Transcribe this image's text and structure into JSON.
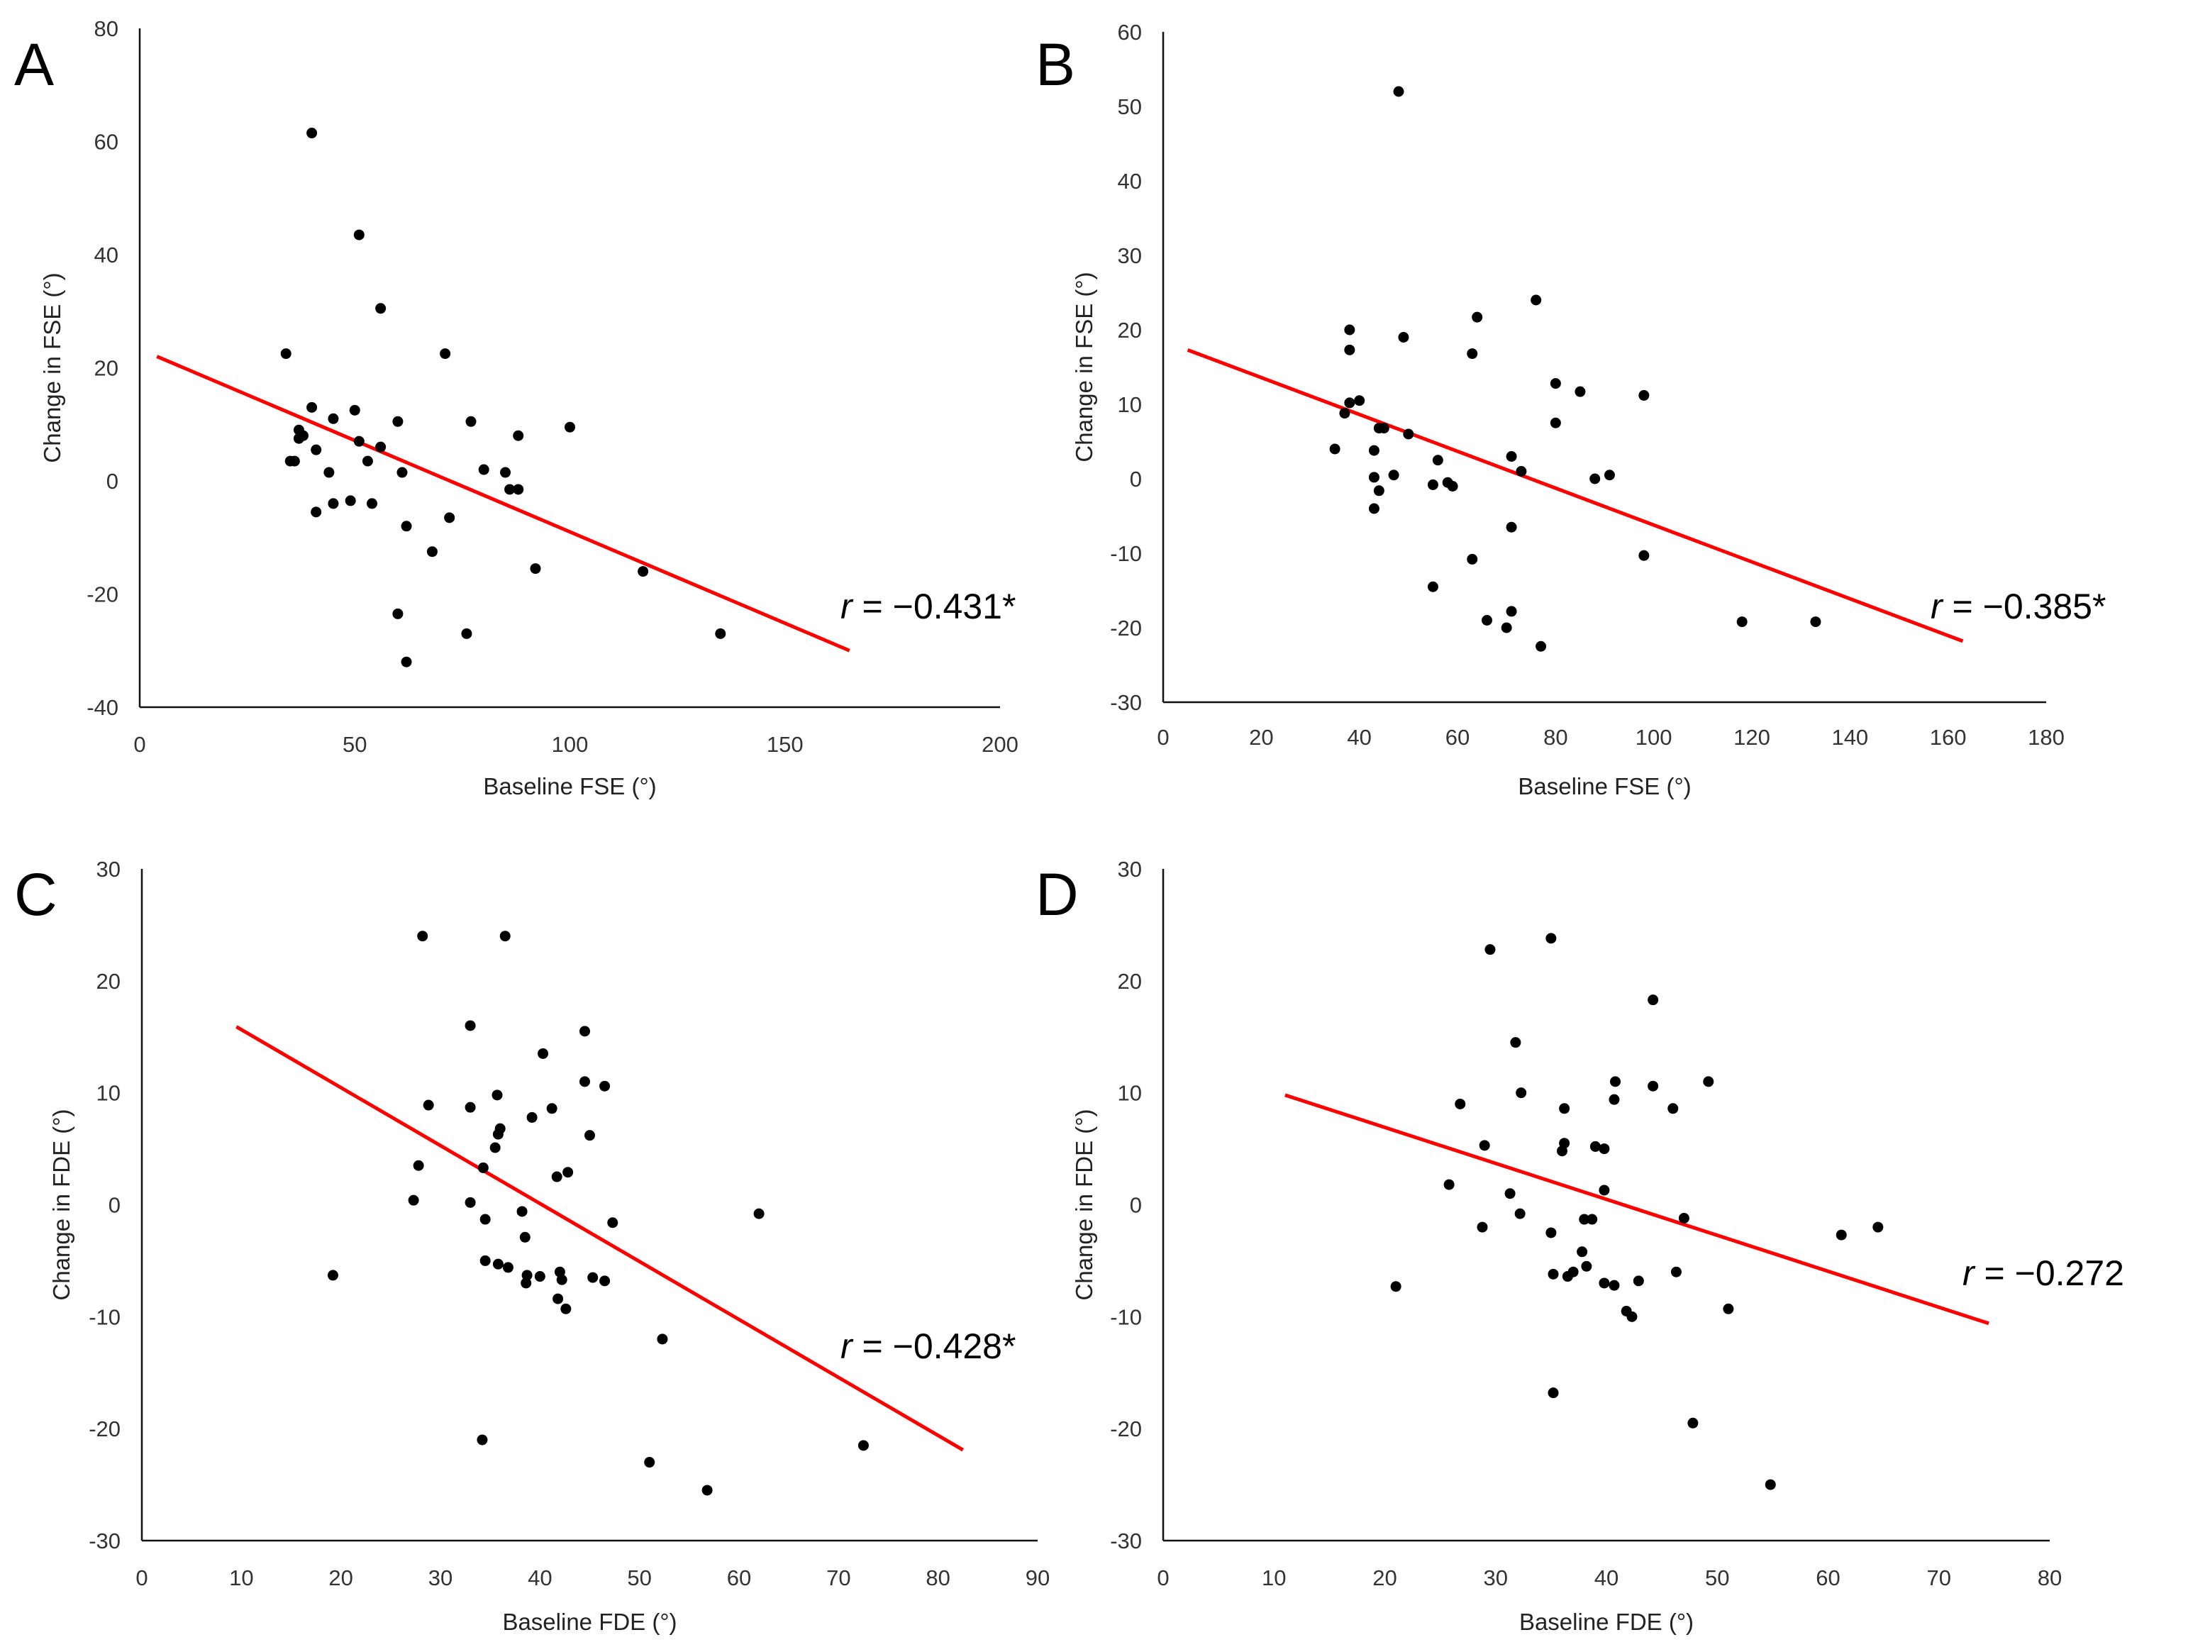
{
  "chart_data": [
    {
      "type": "scatter",
      "panel": "A",
      "xlabel": "Baseline FSE (°)",
      "ylabel": "Change in FSE (°)",
      "xlim": [
        0,
        200
      ],
      "ylim": [
        -40,
        80
      ],
      "xticks": [
        0,
        50,
        100,
        150,
        200
      ],
      "yticks": [
        -40,
        -20,
        0,
        20,
        40,
        60,
        80
      ],
      "xtick_labels": [
        "0",
        "50",
        "100",
        "150",
        "200"
      ],
      "ytick_labels": [
        "-40",
        "-20",
        "0",
        "20",
        "40",
        "60",
        "80"
      ],
      "annotation": {
        "var": "r",
        "text": " = −0.431*"
      },
      "trendline": {
        "x": [
          4,
          165
        ],
        "y": [
          22,
          -30
        ]
      },
      "points": [
        [
          40,
          61.5
        ],
        [
          51,
          43.5
        ],
        [
          56,
          30.5
        ],
        [
          34,
          22.5
        ],
        [
          71,
          22.5
        ],
        [
          40,
          13
        ],
        [
          50,
          12.5
        ],
        [
          45,
          11
        ],
        [
          60,
          10.5
        ],
        [
          77,
          10.5
        ],
        [
          100,
          9.5
        ],
        [
          37,
          9
        ],
        [
          38,
          8
        ],
        [
          37,
          7.5
        ],
        [
          88,
          8
        ],
        [
          51,
          7
        ],
        [
          56,
          6
        ],
        [
          41,
          5.5
        ],
        [
          35,
          3.5
        ],
        [
          36,
          3.5
        ],
        [
          53,
          3.5
        ],
        [
          44,
          1.5
        ],
        [
          61,
          1.5
        ],
        [
          80,
          2
        ],
        [
          85,
          1.5
        ],
        [
          86,
          -1.5
        ],
        [
          88,
          -1.5
        ],
        [
          49,
          -3.5
        ],
        [
          45,
          -4
        ],
        [
          54,
          -4
        ],
        [
          41,
          -5.5
        ],
        [
          72,
          -6.5
        ],
        [
          62,
          -8
        ],
        [
          68,
          -12.5
        ],
        [
          92,
          -15.5
        ],
        [
          117,
          -16
        ],
        [
          60,
          -23.5
        ],
        [
          76,
          -27
        ],
        [
          135,
          -27
        ],
        [
          62,
          -32
        ]
      ]
    },
    {
      "type": "scatter",
      "panel": "B",
      "xlabel": "Baseline FSE (°)",
      "ylabel": "Change in FSE (°)",
      "xlim": [
        0,
        180
      ],
      "ylim": [
        -30,
        60
      ],
      "xticks": [
        0,
        20,
        40,
        60,
        80,
        100,
        120,
        140,
        160,
        180
      ],
      "yticks": [
        -30,
        -20,
        -10,
        0,
        10,
        20,
        30,
        40,
        50,
        60
      ],
      "xtick_labels": [
        "0",
        "20",
        "40",
        "60",
        "80",
        "100",
        "120",
        "140",
        "160",
        "180"
      ],
      "ytick_labels": [
        "-30",
        "-20",
        "-10",
        "0",
        "10",
        "20",
        "30",
        "40",
        "50",
        "60"
      ],
      "annotation": {
        "var": "r",
        "text": " = −0.385*"
      },
      "trendline": {
        "x": [
          5,
          163
        ],
        "y": [
          17.3,
          -21.8
        ]
      },
      "points": [
        [
          48,
          52
        ],
        [
          76,
          24
        ],
        [
          64,
          21.7
        ],
        [
          38,
          20
        ],
        [
          49,
          19
        ],
        [
          38,
          17.3
        ],
        [
          63,
          16.8
        ],
        [
          80,
          12.8
        ],
        [
          85,
          11.7
        ],
        [
          98,
          11.2
        ],
        [
          40,
          10.5
        ],
        [
          38,
          10.2
        ],
        [
          37,
          8.8
        ],
        [
          80,
          7.5
        ],
        [
          44,
          6.8
        ],
        [
          45,
          6.8
        ],
        [
          50,
          6
        ],
        [
          35,
          4
        ],
        [
          43,
          3.8
        ],
        [
          71,
          3
        ],
        [
          56,
          2.5
        ],
        [
          73,
          1
        ],
        [
          43,
          0.2
        ],
        [
          47,
          0.5
        ],
        [
          88,
          0
        ],
        [
          91,
          0.5
        ],
        [
          55,
          -0.8
        ],
        [
          58,
          -0.5
        ],
        [
          59,
          -1
        ],
        [
          44,
          -1.6
        ],
        [
          43,
          -4
        ],
        [
          71,
          -6.5
        ],
        [
          98,
          -10.3
        ],
        [
          63,
          -10.8
        ],
        [
          55,
          -14.5
        ],
        [
          71,
          -17.8
        ],
        [
          66,
          -19
        ],
        [
          70,
          -20
        ],
        [
          118,
          -19.2
        ],
        [
          133,
          -19.2
        ],
        [
          77,
          -22.5
        ]
      ]
    },
    {
      "type": "scatter",
      "panel": "C",
      "xlabel": "Baseline FDE (°)",
      "ylabel": "Change in FDE (°)",
      "xlim": [
        0,
        90
      ],
      "ylim": [
        -30,
        30
      ],
      "xticks": [
        0,
        10,
        20,
        30,
        40,
        50,
        60,
        70,
        80,
        90
      ],
      "yticks": [
        -30,
        -20,
        -10,
        0,
        10,
        20,
        30
      ],
      "xtick_labels": [
        "0",
        "10",
        "20",
        "30",
        "40",
        "50",
        "60",
        "70",
        "80",
        "90"
      ],
      "ytick_labels": [
        "-30",
        "-20",
        "-10",
        "0",
        "10",
        "20",
        "30"
      ],
      "annotation": {
        "var": "r",
        "text": " = −0.428*"
      },
      "trendline": {
        "x": [
          9.5,
          82.5
        ],
        "y": [
          15.9,
          -21.9
        ]
      },
      "points": [
        [
          28.2,
          24
        ],
        [
          36.5,
          24
        ],
        [
          33,
          16
        ],
        [
          44.5,
          15.5
        ],
        [
          40.3,
          13.5
        ],
        [
          44.5,
          11
        ],
        [
          46.5,
          10.6
        ],
        [
          35.7,
          9.8
        ],
        [
          28.8,
          8.9
        ],
        [
          33,
          8.7
        ],
        [
          41.2,
          8.6
        ],
        [
          39.2,
          7.8
        ],
        [
          36,
          6.8
        ],
        [
          35.8,
          6.3
        ],
        [
          45,
          6.2
        ],
        [
          35.5,
          5.1
        ],
        [
          27.8,
          3.5
        ],
        [
          34.3,
          3.3
        ],
        [
          42.8,
          2.9
        ],
        [
          41.7,
          2.5
        ],
        [
          27.3,
          0.4
        ],
        [
          33,
          0.2
        ],
        [
          38.2,
          -0.6
        ],
        [
          62,
          -0.8
        ],
        [
          34.5,
          -1.3
        ],
        [
          47.3,
          -1.6
        ],
        [
          38.5,
          -2.9
        ],
        [
          34.5,
          -5
        ],
        [
          35.8,
          -5.3
        ],
        [
          36.8,
          -5.6
        ],
        [
          42,
          -6
        ],
        [
          38.7,
          -6.3
        ],
        [
          40,
          -6.4
        ],
        [
          45.3,
          -6.5
        ],
        [
          42.2,
          -6.7
        ],
        [
          46.5,
          -6.8
        ],
        [
          19.2,
          -6.3
        ],
        [
          38.6,
          -7
        ],
        [
          41.8,
          -8.4
        ],
        [
          42.6,
          -9.3
        ],
        [
          52.3,
          -12
        ],
        [
          34.2,
          -21
        ],
        [
          72.5,
          -21.5
        ],
        [
          51,
          -23
        ],
        [
          56.8,
          -25.5
        ]
      ]
    },
    {
      "type": "scatter",
      "panel": "D",
      "xlabel": "Baseline FDE (°)",
      "ylabel": "Change in FDE (°)",
      "xlim": [
        0,
        80
      ],
      "ylim": [
        -30,
        30
      ],
      "xticks": [
        0,
        10,
        20,
        30,
        40,
        50,
        60,
        70,
        80
      ],
      "yticks": [
        -30,
        -20,
        -10,
        0,
        10,
        20,
        30
      ],
      "xtick_labels": [
        "0",
        "10",
        "20",
        "30",
        "40",
        "50",
        "60",
        "70",
        "80"
      ],
      "ytick_labels": [
        "-30",
        "-20",
        "-10",
        "0",
        "10",
        "20",
        "30"
      ],
      "annotation": {
        "var": "r",
        "text": " = −0.272"
      },
      "trendline": {
        "x": [
          11,
          74.5
        ],
        "y": [
          9.8,
          -10.6
        ]
      },
      "points": [
        [
          35,
          23.8
        ],
        [
          29.5,
          22.8
        ],
        [
          44.2,
          18.3
        ],
        [
          31.8,
          14.5
        ],
        [
          49.2,
          11
        ],
        [
          40.8,
          11
        ],
        [
          44.2,
          10.6
        ],
        [
          32.3,
          10
        ],
        [
          26.8,
          9
        ],
        [
          40.7,
          9.4
        ],
        [
          46,
          8.6
        ],
        [
          36.2,
          8.6
        ],
        [
          29,
          5.3
        ],
        [
          36.2,
          5.5
        ],
        [
          39,
          5.2
        ],
        [
          39.8,
          5
        ],
        [
          36,
          4.8
        ],
        [
          25.8,
          1.8
        ],
        [
          39.8,
          1.3
        ],
        [
          31.3,
          1
        ],
        [
          32.2,
          -0.8
        ],
        [
          47,
          -1.2
        ],
        [
          38,
          -1.3
        ],
        [
          38.7,
          -1.3
        ],
        [
          28.8,
          -2
        ],
        [
          61.2,
          -2.7
        ],
        [
          64.5,
          -2
        ],
        [
          35,
          -2.5
        ],
        [
          37.8,
          -4.2
        ],
        [
          38.2,
          -5.5
        ],
        [
          37,
          -6
        ],
        [
          46.3,
          -6
        ],
        [
          35.2,
          -6.2
        ],
        [
          36.5,
          -6.4
        ],
        [
          39.8,
          -7
        ],
        [
          40.7,
          -7.2
        ],
        [
          42.9,
          -6.8
        ],
        [
          21,
          -7.3
        ],
        [
          51,
          -9.3
        ],
        [
          41.8,
          -9.5
        ],
        [
          42.3,
          -10
        ],
        [
          35.2,
          -16.8
        ],
        [
          47.8,
          -19.5
        ],
        [
          54.8,
          -25
        ]
      ]
    }
  ]
}
